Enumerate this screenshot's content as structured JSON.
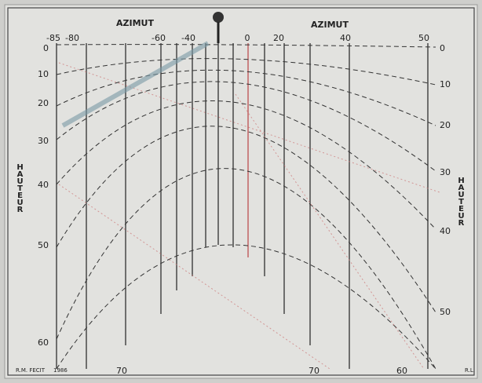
{
  "header": {
    "left_title": "AZIMUT",
    "right_title": "AZIMUT"
  },
  "azimuth_labels": [
    "-85",
    "-80",
    "-60",
    "-40",
    "0",
    "20",
    "40",
    "50"
  ],
  "left_heights": [
    "0",
    "10",
    "20",
    "30",
    "40",
    "50",
    "60"
  ],
  "right_heights": [
    "0",
    "10",
    "20",
    "30",
    "40",
    "50"
  ],
  "bottom_labels": [
    "70",
    "70",
    "60"
  ],
  "side_titles": [
    "HAUTEUR",
    "HAUTEUR"
  ],
  "footer": {
    "left": "R.M. FECIT",
    "year": "1986",
    "right": "R.L."
  }
}
